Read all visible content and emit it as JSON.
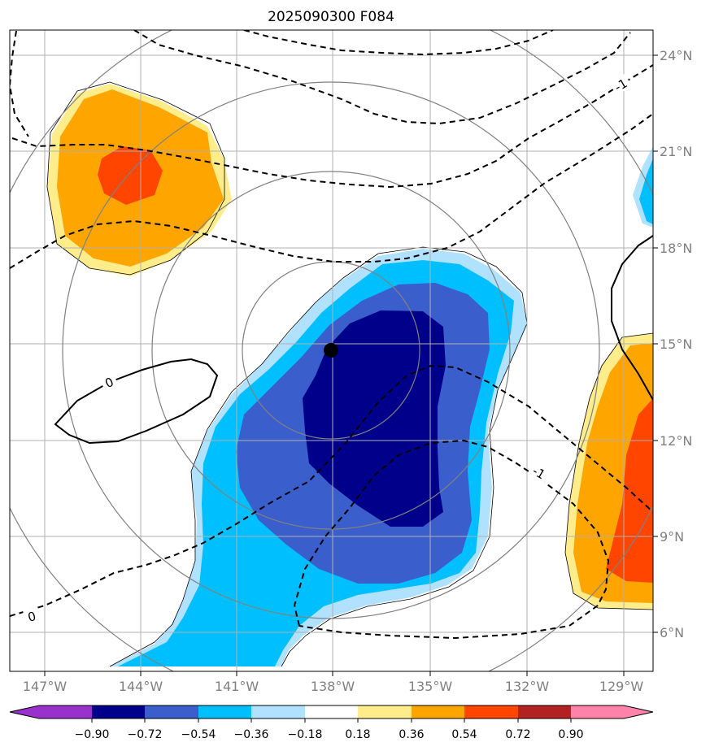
{
  "title": "2025090300 F084",
  "lon_ticks": [
    "147°W",
    "144°W",
    "141°W",
    "138°W",
    "135°W",
    "132°W",
    "129°W"
  ],
  "lat_ticks": [
    "24°N",
    "21°N",
    "18°N",
    "15°N",
    "12°N",
    "9°N",
    "6°N"
  ],
  "contour_labels": {
    "c0_solid": "0",
    "c1_upper": "-1",
    "c1_lower": "-1",
    "c0_dashed": "0"
  },
  "colorbar": {
    "labels": [
      "−0.90",
      "−0.72",
      "−0.54",
      "−0.36",
      "−0.18",
      "0.18",
      "0.36",
      "0.54",
      "0.72",
      "0.90"
    ],
    "colors": [
      "#9932cc",
      "#00008b",
      "#3a5fcd",
      "#00bfff",
      "#b0e2ff",
      "#ffffff",
      "#ffec8b",
      "#ffa500",
      "#ff4500",
      "#b22222",
      "#ff82ab"
    ]
  },
  "fill_colors": {
    "dark_blue": "#00008b",
    "mid_blue": "#3a5fcd",
    "light_blue": "#00bfff",
    "pale_blue": "#b0e2ff",
    "yellow": "#ffec8b",
    "orange": "#ffa500",
    "red_orange": "#ff4500"
  },
  "center_marker": {
    "lon": "138°W",
    "lat": "14.8°N"
  }
}
